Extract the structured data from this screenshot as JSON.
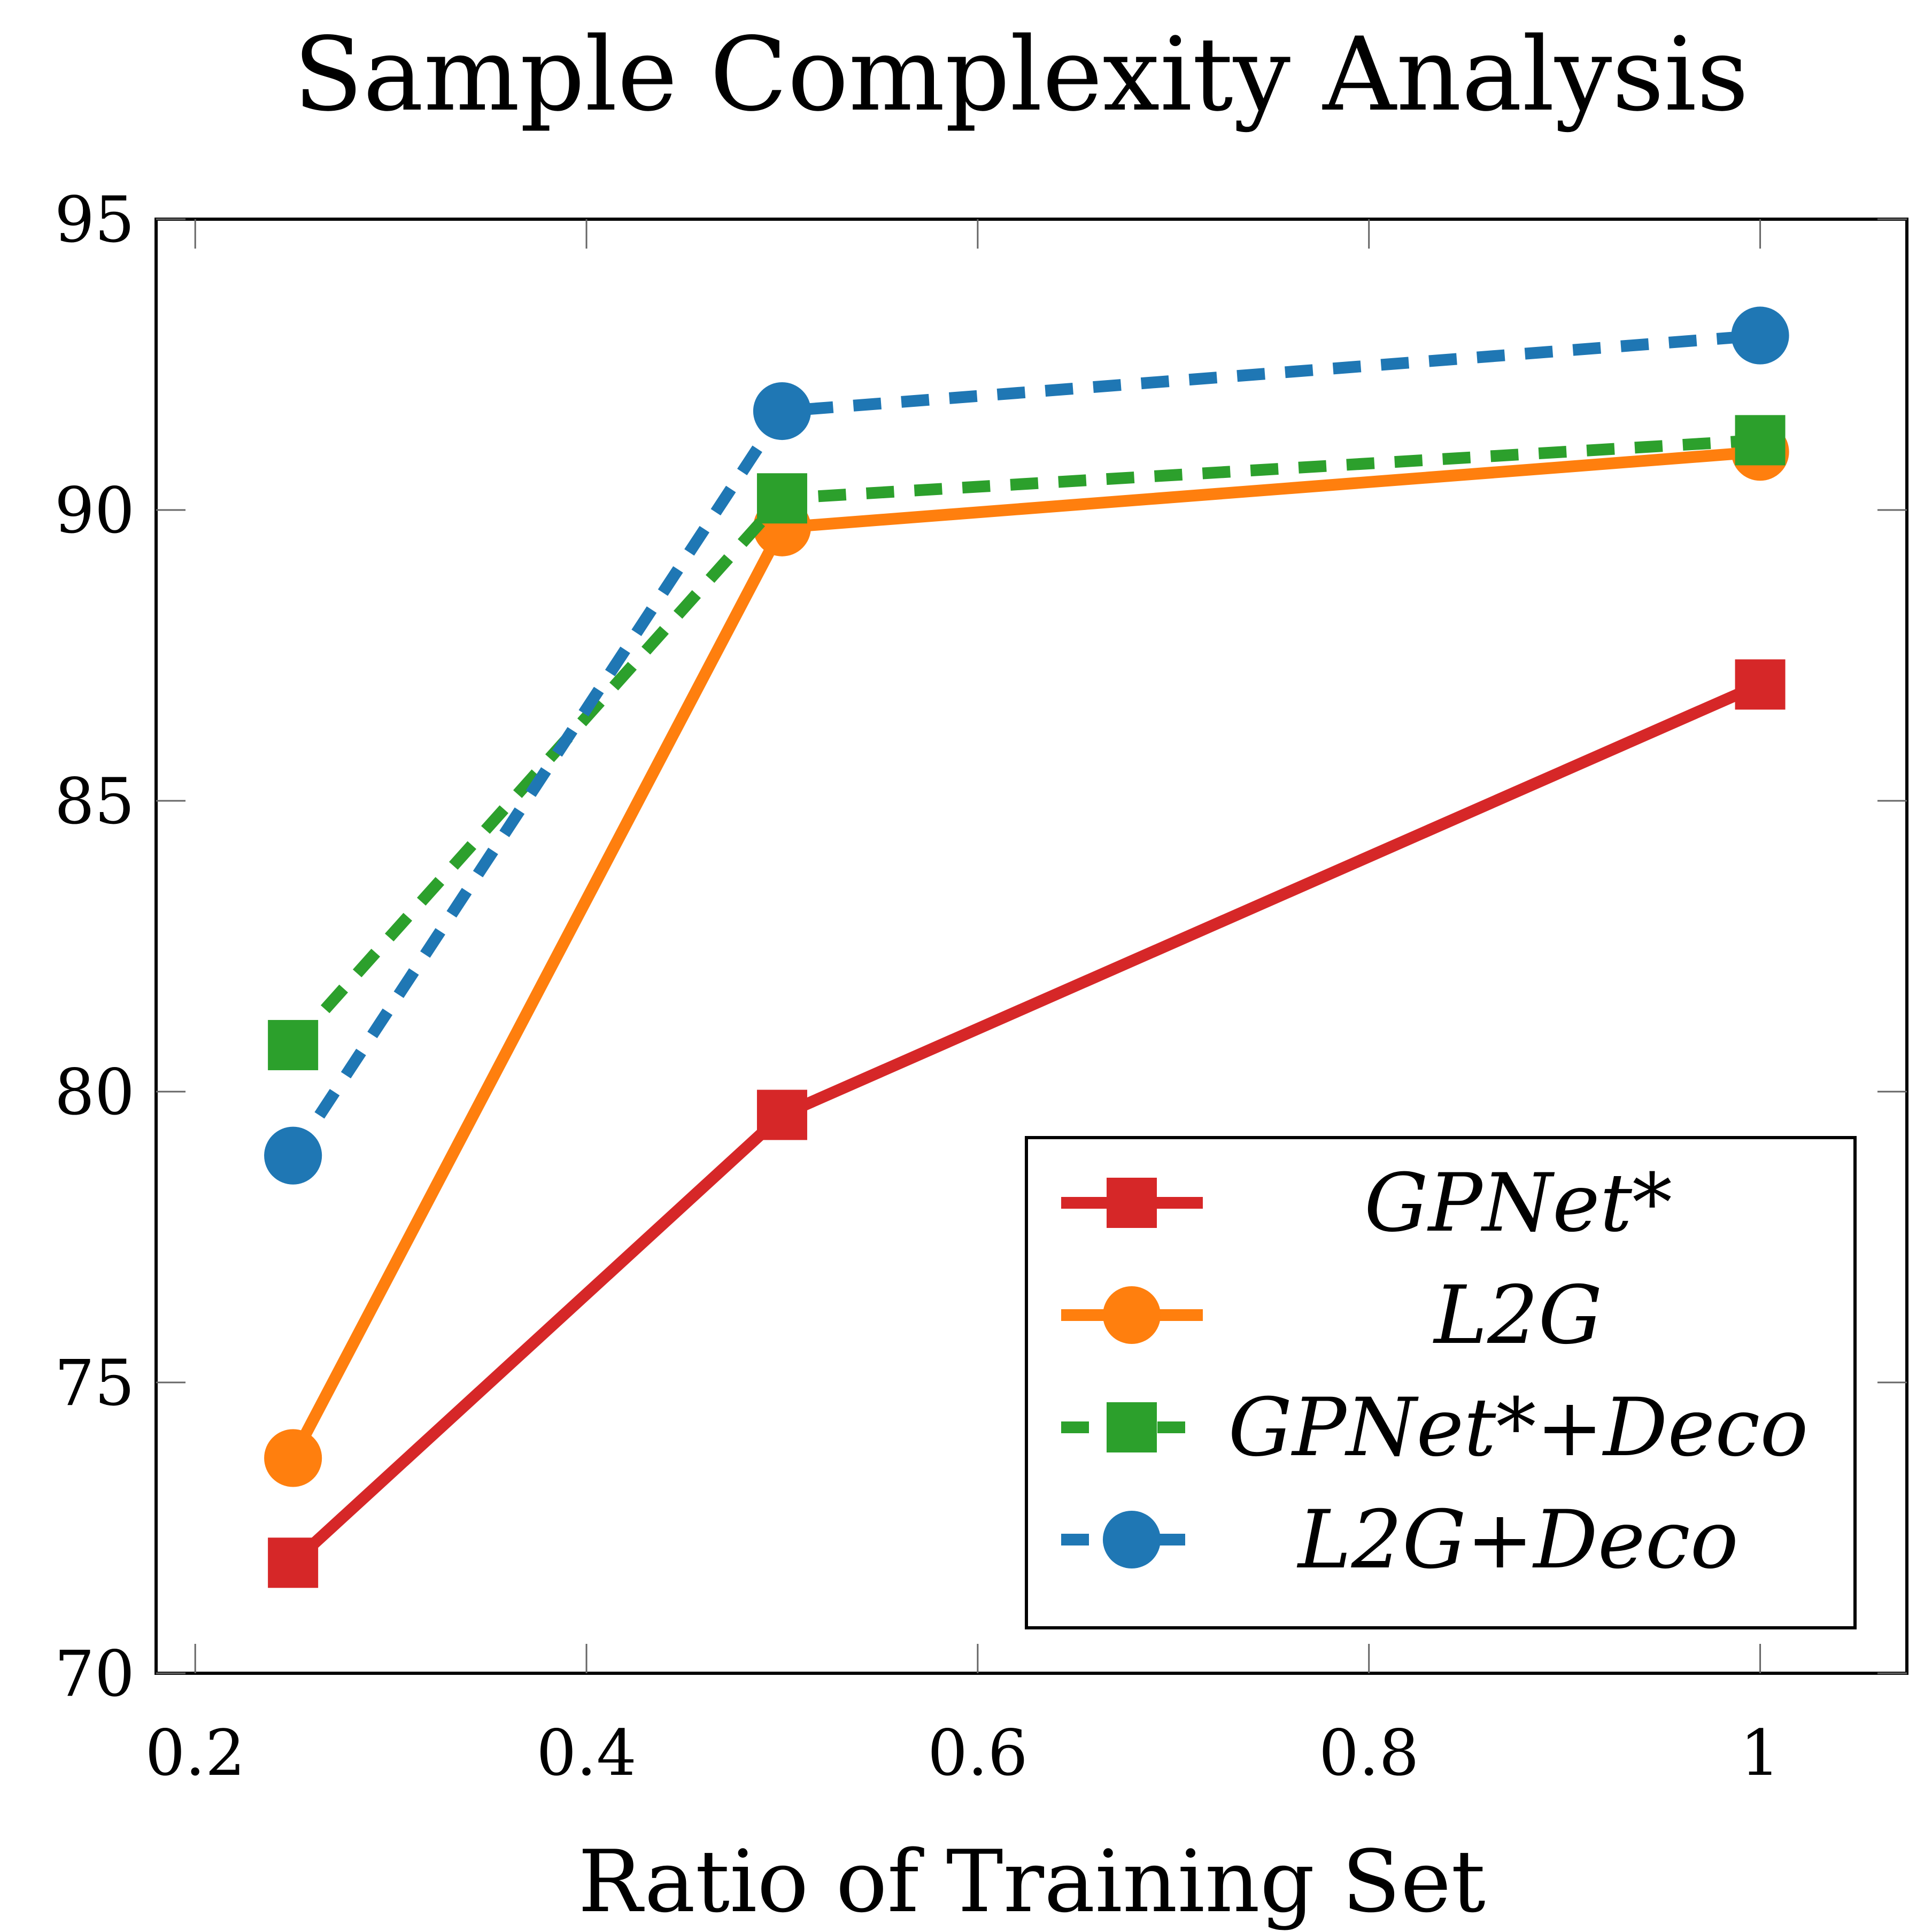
{
  "chart_data": {
    "type": "line",
    "title": "Sample Complexity Analysis",
    "xlabel": "Ratio of Training Set",
    "ylabel": "",
    "xlim": [
      0.18,
      1.075
    ],
    "ylim": [
      70,
      95
    ],
    "xticks": [
      0.2,
      0.4,
      0.6,
      0.8,
      1
    ],
    "xtick_labels": [
      "0.2",
      "0.4",
      "0.6",
      "0.8",
      "1"
    ],
    "yticks": [
      70,
      75,
      80,
      85,
      90,
      95
    ],
    "ytick_labels": [
      "70",
      "75",
      "80",
      "85",
      "90",
      "95"
    ],
    "grid": false,
    "legend_position": "bottom-right",
    "x": [
      0.25,
      0.5,
      1.0
    ],
    "series": [
      {
        "name": "GPNet*",
        "values": [
          71.9,
          79.6,
          87.0
        ],
        "color": "#d62728",
        "marker": "square",
        "dashed": false
      },
      {
        "name": "L2G",
        "values": [
          73.7,
          89.7,
          91.0
        ],
        "color": "#ff7f0e",
        "marker": "circle",
        "dashed": false
      },
      {
        "name": "GPNet*+Deco",
        "values": [
          80.8,
          90.2,
          91.2
        ],
        "color": "#2ca02c",
        "marker": "square",
        "dashed": true
      },
      {
        "name": "L2G+Deco",
        "values": [
          78.9,
          91.7,
          93.0
        ],
        "color": "#1f77b4",
        "marker": "circle",
        "dashed": true
      }
    ]
  }
}
